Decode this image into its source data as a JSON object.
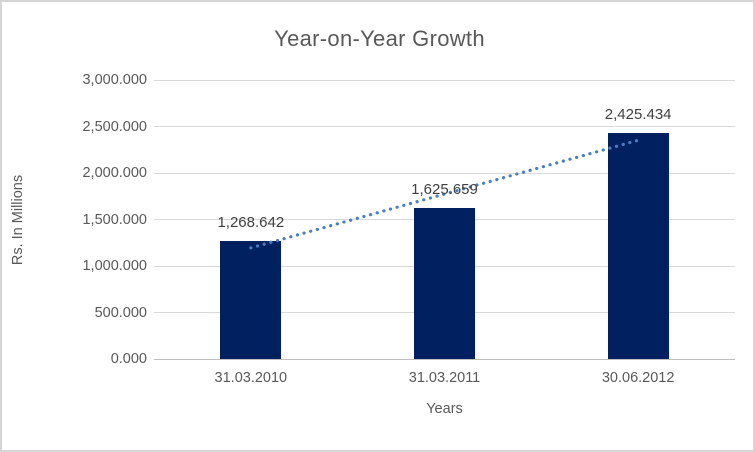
{
  "chart_data": {
    "type": "bar",
    "title": "Year-on-Year Growth",
    "xlabel": "Years",
    "ylabel": "Rs. In Millions",
    "categories": [
      "31.03.2010",
      "31.03.2011",
      "30.06.2012"
    ],
    "values": [
      1268.642,
      1625.659,
      2425.434
    ],
    "value_labels": [
      "1,268.642",
      "1,625.659",
      "2,425.434"
    ],
    "ylim": [
      0,
      3000
    ],
    "ytick_step": 500,
    "yticks": [
      0,
      500,
      1000,
      1500,
      2000,
      2500,
      3000
    ],
    "ytick_labels": [
      "0.000",
      "500.000",
      "1,000.000",
      "1,500.000",
      "2,000.000",
      "2,500.000",
      "3,000.000"
    ],
    "grid": true,
    "legend": "none",
    "trendline": {
      "type": "linear",
      "style": "dotted"
    },
    "colors": {
      "bar": "#002060",
      "trendline": "#4a7ec0",
      "gridline": "#d9d9d9",
      "axis_line": "#bfbfbf",
      "text": "#595959",
      "data_label": "#404040",
      "border": "#d5d5d5",
      "background": "#ffffff"
    }
  }
}
